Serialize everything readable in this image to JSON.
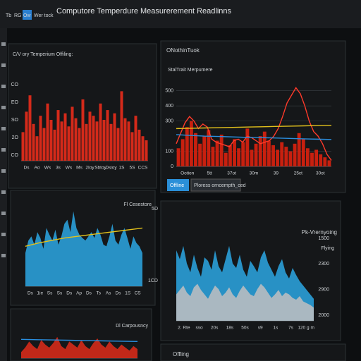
{
  "header": {
    "tabs": [
      "Tb",
      "RG",
      "Ow",
      "Wer tock"
    ],
    "title": "Computore Temperdure Measurerement Readlinns"
  },
  "panels": [
    {
      "title": "C/V ory Temperium Offiling:",
      "chart": {
        "type": "bar",
        "ylim": [
          0,
          100
        ],
        "ylabels": [
          "CO",
          "EO",
          "SO",
          "2O",
          "CO"
        ],
        "xlabels": [
          "Ds",
          "Ao",
          "Ws",
          "3s",
          "Ws",
          "Ms",
          "2Ioy",
          "Sbtoy",
          "Dsioy",
          "1S",
          "5S",
          "CCS"
        ],
        "series": [
          {
            "style": "bar",
            "color": "#d42a1a",
            "values": [
              35,
              60,
              80,
              45,
              30,
              55,
              40,
              70,
              50,
              38,
              62,
              48,
              58,
              42,
              66,
              52,
              40,
              75,
              45,
              60,
              55,
              48,
              70,
              50,
              62,
              45,
              58,
              40,
              85,
              52,
              48,
              35,
              55,
              38,
              30,
              25
            ]
          }
        ]
      }
    },
    {
      "title": "ONothinTuok",
      "subtitle": "StalTrait Merpumere",
      "buttons": [
        "Offline",
        "Ploress orncempth_ced"
      ],
      "chart": {
        "type": "bar",
        "ylim": [
          0,
          550
        ],
        "yticks": [
          0,
          100,
          300,
          400,
          500
        ],
        "xlabels": [
          "Ootion",
          "5tt",
          "37ot",
          "30m",
          "39",
          "25ct",
          "30ot"
        ],
        "series": [
          {
            "style": "bar",
            "color": "#c8200f",
            "values": [
              120,
              180,
              260,
              300,
              220,
              150,
              200,
              240,
              130,
              170,
              210,
              90,
              140,
              180,
              120,
              160,
              250,
              110,
              150,
              200,
              230,
              170,
              140,
              110,
              160,
              130,
              100,
              150,
              220,
              180,
              120,
              90,
              110,
              80,
              60,
              40
            ]
          },
          {
            "style": "line",
            "color": "#ff3a2a",
            "values": [
              150,
              220,
              290,
              330,
              300,
              250,
              280,
              260,
              180,
              160,
              150,
              140,
              130,
              170,
              180,
              160,
              200,
              190,
              170,
              150,
              160,
              170,
              200,
              250,
              330,
              420,
              470,
              520,
              480,
              400,
              300,
              230,
              200,
              150,
              80,
              40
            ]
          },
          {
            "style": "line",
            "color": "#e3c21c",
            "values": [
              250,
              252,
              254,
              256,
              258,
              260,
              262,
              264,
              266,
              268,
              270,
              272
            ]
          },
          {
            "style": "line",
            "color": "#2a8fe0",
            "values": [
              210,
              205,
              200,
              198,
              195,
              192,
              190,
              188,
              185,
              182,
              180,
              178
            ]
          }
        ]
      }
    },
    {
      "title": "Fl Cesestore",
      "chart": {
        "type": "area",
        "ylim": [
          0,
          100
        ],
        "ylabels": [
          "5D",
          "1CD"
        ],
        "xlabels": [
          "Ds",
          "1ie",
          "Ss",
          "Ss",
          "Ds",
          "Ap",
          "Ds",
          "Ts",
          "As",
          "Ds",
          "1S",
          "CS"
        ],
        "series": [
          {
            "style": "area",
            "color": "#2a9fd8",
            "values": [
              40,
              55,
              60,
              50,
              65,
              58,
              45,
              70,
              62,
              55,
              68,
              50,
              60,
              75,
              80,
              65,
              90,
              70,
              62,
              58,
              55,
              60,
              65,
              58,
              70,
              62,
              50,
              48,
              60,
              75,
              55,
              50,
              62,
              70,
              58,
              45,
              60,
              52,
              48,
              40
            ]
          },
          {
            "style": "line",
            "color": "#e3c21c",
            "values": [
              48,
              52,
              55,
              58,
              60,
              62,
              64,
              66,
              68,
              70
            ]
          }
        ]
      }
    },
    {
      "title": "Pk-Vrernyoing",
      "subtitle": "Flying",
      "chart": {
        "type": "area",
        "ylim": [
          0,
          100
        ],
        "ylabels": [
          "1500",
          "2300",
          "2900",
          "2000"
        ],
        "xlabels": [
          "2. Rte",
          "sso",
          "20s",
          "18s",
          "50s",
          "s9",
          "1s",
          "7s",
          "120 g m"
        ],
        "series": [
          {
            "style": "area",
            "color": "#2a9fd8",
            "values": [
              80,
              70,
              85,
              65,
              55,
              75,
              60,
              50,
              72,
              68,
              58,
              80,
              62,
              55,
              70,
              85,
              65,
              60,
              75,
              58,
              50,
              68,
              62,
              55,
              72,
              80,
              66,
              58,
              50,
              62,
              70,
              55,
              48,
              60,
              52,
              45,
              40,
              35,
              30,
              25
            ]
          },
          {
            "style": "area",
            "color": "#b8bcc0",
            "values": [
              30,
              35,
              40,
              32,
              28,
              38,
              42,
              35,
              30,
              25,
              33,
              40,
              36,
              28,
              32,
              38,
              30,
              26,
              34,
              40,
              35,
              30,
              28,
              36,
              42,
              38,
              32,
              26,
              30,
              35,
              28,
              32,
              30,
              26,
              24,
              28,
              22,
              20,
              18,
              15
            ]
          }
        ]
      }
    },
    {
      "title": "Dl Carpousncy",
      "chart": {
        "type": "area",
        "ylim": [
          0,
          100
        ],
        "series": [
          {
            "style": "area",
            "color": "#d42a1a",
            "values": [
              20,
              35,
              55,
              40,
              30,
              60,
              45,
              35,
              50,
              70,
              40,
              30,
              55,
              45,
              35,
              60,
              40,
              30,
              50,
              65,
              45,
              35,
              55,
              40,
              30,
              45,
              35,
              25,
              40,
              30
            ]
          },
          {
            "style": "line",
            "color": "#2a8fe0",
            "values": [
              62,
              61,
              60,
              59,
              58,
              57,
              56,
              55
            ]
          }
        ]
      }
    },
    {
      "title": "Offling"
    }
  ]
}
